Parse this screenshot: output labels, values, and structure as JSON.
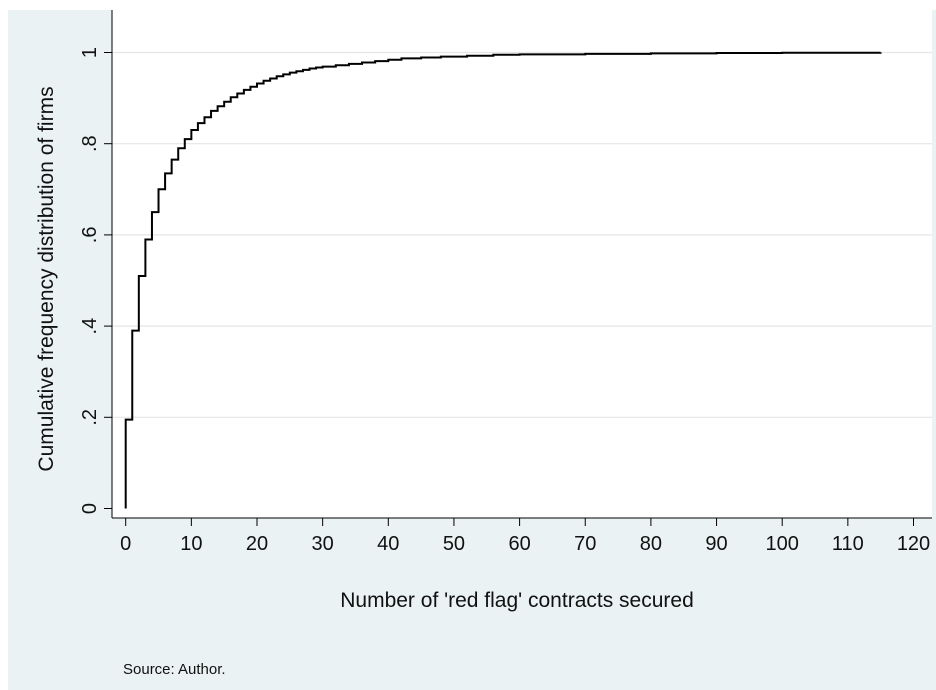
{
  "chart_data": {
    "type": "line",
    "subtype": "step",
    "title": "",
    "xlabel": "Number of 'red flag' contracts secured",
    "ylabel": "Cumulative frequency distribution of firms",
    "xlim": [
      0,
      120
    ],
    "ylim": [
      0,
      1
    ],
    "x_ticks": [
      0,
      10,
      20,
      30,
      40,
      50,
      60,
      70,
      80,
      90,
      100,
      110,
      120
    ],
    "x_tick_labels": [
      "0",
      "10",
      "20",
      "30",
      "40",
      "50",
      "60",
      "70",
      "80",
      "90",
      "100",
      "110",
      "120"
    ],
    "y_ticks": [
      0,
      0.2,
      0.4,
      0.6,
      0.8,
      1
    ],
    "y_tick_labels": [
      "0",
      ".2",
      ".4",
      ".6",
      ".8",
      "1"
    ],
    "grid": true,
    "legend": "none",
    "colors": {
      "background": "#eaf2f3",
      "plot_background": "#ffffff",
      "line": "#000000",
      "grid": "#e6e6e6"
    },
    "series": [
      {
        "x": [
          0,
          1,
          2,
          3,
          4,
          5,
          6,
          7,
          8,
          9,
          10,
          11,
          12,
          13,
          14,
          15,
          16,
          17,
          18,
          19,
          20,
          21,
          22,
          23,
          24,
          25,
          26,
          27,
          28,
          29,
          30,
          32,
          34,
          36,
          38,
          40,
          42,
          45,
          48,
          52,
          56,
          60,
          70,
          80,
          90,
          100,
          115
        ],
        "y": [
          0.195,
          0.39,
          0.51,
          0.59,
          0.65,
          0.7,
          0.735,
          0.765,
          0.79,
          0.81,
          0.83,
          0.845,
          0.858,
          0.872,
          0.882,
          0.892,
          0.902,
          0.91,
          0.918,
          0.925,
          0.932,
          0.938,
          0.943,
          0.948,
          0.952,
          0.956,
          0.959,
          0.962,
          0.965,
          0.967,
          0.969,
          0.972,
          0.975,
          0.978,
          0.981,
          0.984,
          0.987,
          0.989,
          0.991,
          0.993,
          0.995,
          0.996,
          0.997,
          0.998,
          0.999,
          0.9995,
          1.0
        ]
      }
    ]
  },
  "figure": {
    "source_note": "Source: Author."
  }
}
